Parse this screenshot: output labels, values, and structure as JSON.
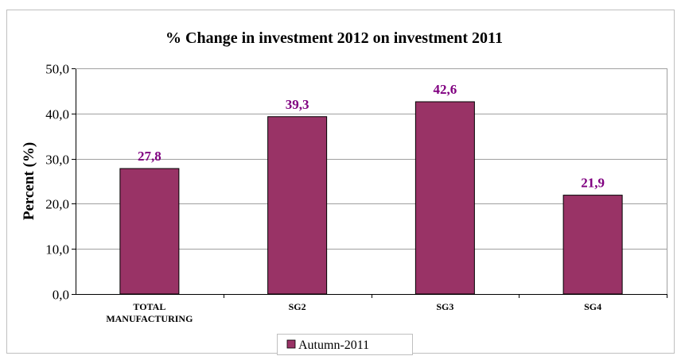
{
  "colors": {
    "bar": "#993366",
    "data_label": "#800080",
    "grid": "#a0a0a0",
    "frame": "#bfbfbf"
  },
  "chart_data": {
    "type": "bar",
    "title": "% Change in investment 2012 on investment 2011",
    "xlabel": "",
    "ylabel": "Percent (%)",
    "categories": [
      "TOTAL MANUFACTURING",
      "SG2",
      "SG3",
      "SG4"
    ],
    "category_lines": [
      [
        "TOTAL",
        "MANUFACTURING"
      ],
      [
        "SG2"
      ],
      [
        "SG3"
      ],
      [
        "SG4"
      ]
    ],
    "series": [
      {
        "name": "Autumn-2011",
        "values": [
          27.8,
          39.3,
          42.6,
          21.9
        ],
        "value_labels": [
          "27,8",
          "39,3",
          "42,6",
          "21,9"
        ]
      }
    ],
    "ylim": [
      0,
      50
    ],
    "yticks": [
      0,
      10,
      20,
      30,
      40,
      50
    ],
    "ytick_labels": [
      "0,0",
      "10,0",
      "20,0",
      "30,0",
      "40,0",
      "50,0"
    ],
    "grid": true,
    "legend_position": "bottom"
  }
}
